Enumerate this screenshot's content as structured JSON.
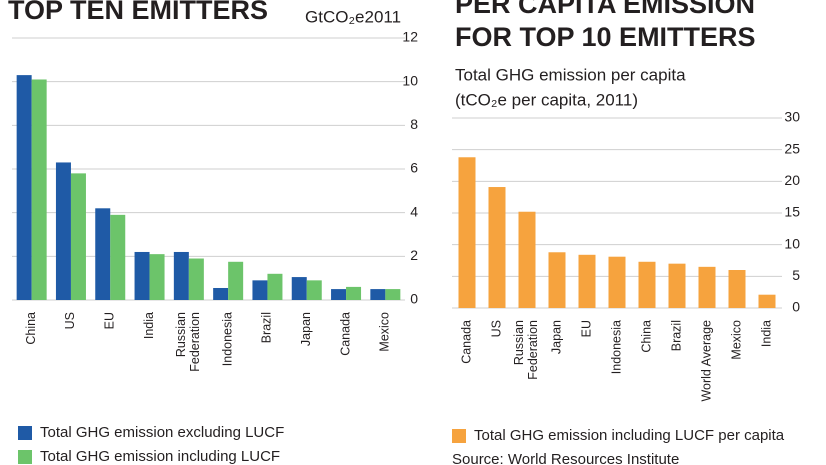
{
  "chart_data": [
    {
      "type": "bar",
      "title": [
        "TOP TEN EMITTERS"
      ],
      "unit_label": "GtCO₂e2011",
      "categories": [
        "China",
        "US",
        "EU",
        "India",
        "Russian Federation",
        "Indonesia",
        "Brazil",
        "Japan",
        "Canada",
        "Mexico"
      ],
      "series": [
        {
          "name": "Total GHG emission excluding LUCF",
          "color": "#1f5aa6",
          "values": [
            10.3,
            6.3,
            4.2,
            2.2,
            2.2,
            0.55,
            0.9,
            1.05,
            0.5,
            0.5
          ]
        },
        {
          "name": "Total GHG emission including LUCF",
          "color": "#6cc46a",
          "values": [
            10.1,
            5.8,
            3.9,
            2.1,
            1.9,
            1.75,
            1.2,
            0.9,
            0.6,
            0.5
          ]
        }
      ],
      "ylim": [
        0,
        12
      ],
      "yticks": [
        0,
        2,
        4,
        6,
        8,
        10,
        12
      ],
      "grid": true,
      "legend": "bottom"
    },
    {
      "type": "bar",
      "title": [
        "PER CAPITA EMISSION",
        "FOR TOP 10 EMITTERS"
      ],
      "subtitle": [
        "Total GHG emission per capita",
        "(tCO₂e per capita, 2011)"
      ],
      "categories": [
        "Canada",
        "US",
        "Russian Federation",
        "Japan",
        "EU",
        "Indonesia",
        "China",
        "Brazil",
        "World Average",
        "Mexico",
        "India"
      ],
      "series": [
        {
          "name": "Total GHG emission including LUCF per capita",
          "color": "#f6a33e",
          "values": [
            23.8,
            19.1,
            15.2,
            8.8,
            8.4,
            8.1,
            7.3,
            7.0,
            6.5,
            6.0,
            2.1
          ]
        }
      ],
      "ylim": [
        0,
        30
      ],
      "yticks": [
        0,
        5,
        10,
        15,
        20,
        25,
        30
      ],
      "grid": true,
      "legend": "bottom",
      "source": "Source: World Resources Institute"
    }
  ]
}
